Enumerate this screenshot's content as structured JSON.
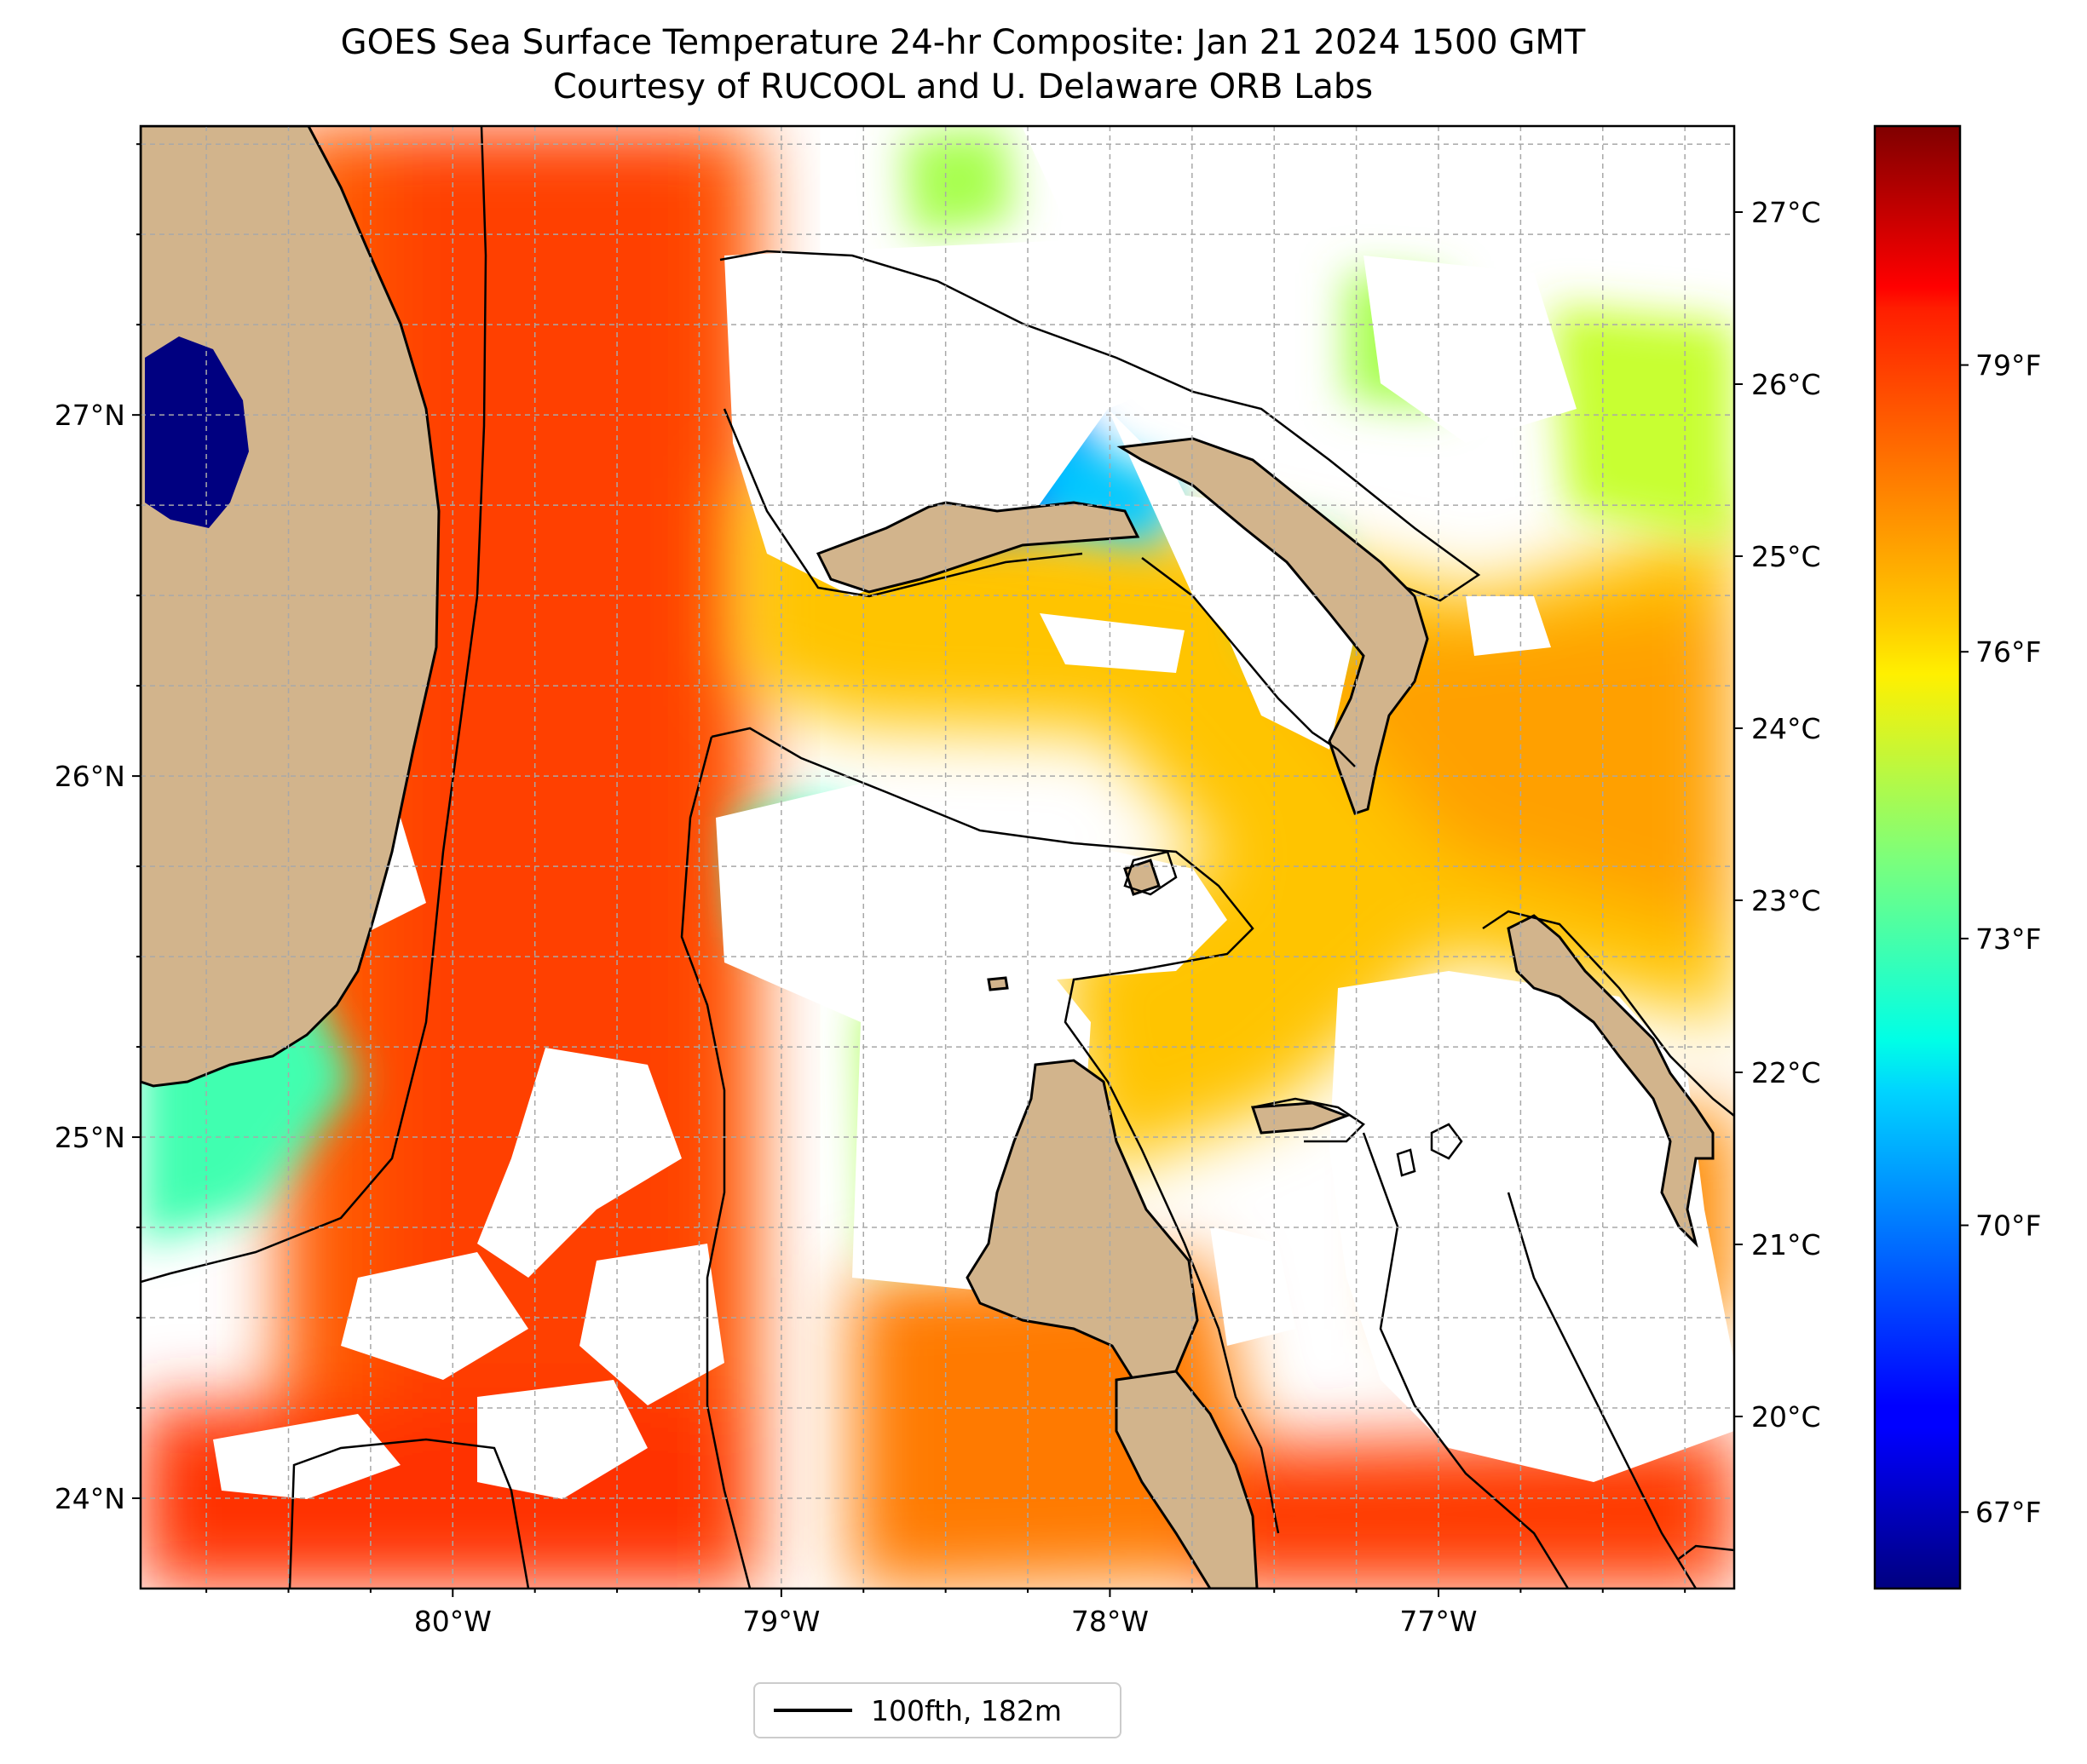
{
  "header": {
    "title": "GOES Sea Surface Temperature 24-hr Composite: Jan 21 2024 1500 GMT",
    "subtitle": "Courtesy of RUCOOL and U. Delaware ORB Labs"
  },
  "map": {
    "lon_range": [
      -80.95,
      -76.1
    ],
    "lat_range": [
      23.75,
      27.8
    ],
    "lon_ticks": [
      {
        "value": -80,
        "label": "80°W"
      },
      {
        "value": -79,
        "label": "79°W"
      },
      {
        "value": -78,
        "label": "78°W"
      },
      {
        "value": -77,
        "label": "77°W"
      }
    ],
    "lat_ticks": [
      {
        "value": 24,
        "label": "24°N"
      },
      {
        "value": 25,
        "label": "25°N"
      },
      {
        "value": 26,
        "label": "26°N"
      },
      {
        "value": 27,
        "label": "27°N"
      }
    ],
    "land_color": "#d2b48c",
    "gridlines": "dashed"
  },
  "colorbar": {
    "colormap": "jet",
    "range_c": [
      19.0,
      27.5
    ],
    "celsius_ticks": [
      {
        "value": 20,
        "label": "20°C"
      },
      {
        "value": 21,
        "label": "21°C"
      },
      {
        "value": 22,
        "label": "22°C"
      },
      {
        "value": 23,
        "label": "23°C"
      },
      {
        "value": 24,
        "label": "24°C"
      },
      {
        "value": 25,
        "label": "25°C"
      },
      {
        "value": 26,
        "label": "26°C"
      },
      {
        "value": 27,
        "label": "27°C"
      }
    ],
    "fahrenheit_ticks": [
      {
        "value": 67,
        "label": "67°F"
      },
      {
        "value": 70,
        "label": "70°F"
      },
      {
        "value": 73,
        "label": "73°F"
      },
      {
        "value": 76,
        "label": "76°F"
      },
      {
        "value": 79,
        "label": "79°F"
      }
    ]
  },
  "legend": {
    "items": [
      {
        "label": "100fth, 182m",
        "color": "#000000"
      }
    ]
  }
}
